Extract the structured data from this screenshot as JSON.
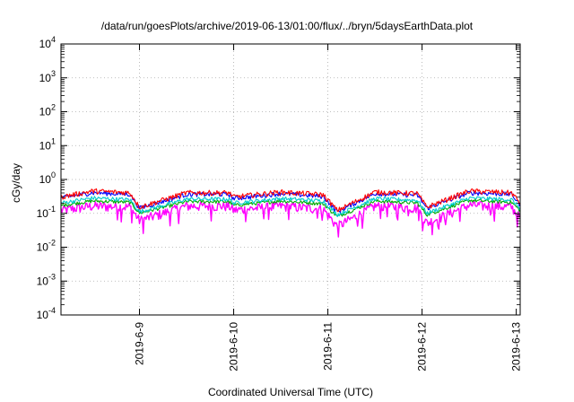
{
  "chart_data": {
    "type": "line",
    "title": "/data/run/goesPlots/archive/2019-06-13/01:00/flux/../bryn/5daysEarthData.plot",
    "xlabel": "Coordinated Universal Time (UTC)",
    "ylabel": "cGy/day",
    "yscale": "log",
    "ylim": [
      0.0001,
      10000
    ],
    "xlim": [
      "2019-06-08T04:00",
      "2019-06-13T01:00"
    ],
    "grid": true,
    "legend": "none",
    "x_ticks": [
      "2019-6-9",
      "2019-6-10",
      "2019-6-11",
      "2019-6-12",
      "2019-6-13"
    ],
    "y_ticks": [
      {
        "base": "10",
        "exp": "-4"
      },
      {
        "base": "10",
        "exp": "-3"
      },
      {
        "base": "10",
        "exp": "-2"
      },
      {
        "base": "10",
        "exp": "-1"
      },
      {
        "base": "10",
        "exp": "0"
      },
      {
        "base": "10",
        "exp": "1"
      },
      {
        "base": "10",
        "exp": "2"
      },
      {
        "base": "10",
        "exp": "3"
      },
      {
        "base": "10",
        "exp": "4"
      }
    ],
    "series": [
      {
        "color": "#ff0000",
        "days_x": [
          8.17,
          8.5,
          8.9,
          9.0,
          9.5,
          9.95,
          10.0,
          10.5,
          10.95,
          11.1,
          11.5,
          11.95,
          12.05,
          12.5,
          12.95,
          13.04
        ],
        "values": [
          0.3,
          0.45,
          0.4,
          0.15,
          0.4,
          0.4,
          0.3,
          0.42,
          0.35,
          0.12,
          0.42,
          0.38,
          0.15,
          0.45,
          0.4,
          0.2
        ]
      },
      {
        "color": "#0000ff",
        "days_x": [
          8.17,
          8.5,
          8.9,
          9.0,
          9.5,
          9.95,
          10.0,
          10.5,
          10.95,
          11.1,
          11.5,
          11.95,
          12.05,
          12.5,
          12.95,
          13.04
        ],
        "values": [
          0.28,
          0.4,
          0.36,
          0.14,
          0.36,
          0.36,
          0.27,
          0.38,
          0.31,
          0.11,
          0.38,
          0.34,
          0.14,
          0.4,
          0.36,
          0.18
        ]
      },
      {
        "color": "#00cccc",
        "days_x": [
          8.17,
          8.5,
          8.9,
          9.0,
          9.5,
          9.95,
          10.0,
          10.5,
          10.95,
          11.1,
          11.5,
          11.95,
          12.05,
          12.5,
          12.95,
          13.04
        ],
        "values": [
          0.2,
          0.28,
          0.25,
          0.11,
          0.26,
          0.26,
          0.2,
          0.27,
          0.23,
          0.09,
          0.27,
          0.24,
          0.1,
          0.28,
          0.25,
          0.14
        ]
      },
      {
        "color": "#00aa00",
        "days_x": [
          8.17,
          8.5,
          8.9,
          9.0,
          9.5,
          9.95,
          10.0,
          10.5,
          10.95,
          11.1,
          11.5,
          11.95,
          12.05,
          12.5,
          12.95,
          13.04
        ],
        "values": [
          0.17,
          0.23,
          0.21,
          0.1,
          0.22,
          0.22,
          0.17,
          0.23,
          0.19,
          0.08,
          0.23,
          0.2,
          0.09,
          0.24,
          0.21,
          0.12
        ]
      },
      {
        "color": "#ff00ff",
        "days_x": [
          8.17,
          8.5,
          8.9,
          9.0,
          9.5,
          9.95,
          10.0,
          10.5,
          10.95,
          11.1,
          11.5,
          11.95,
          12.05,
          12.5,
          12.95,
          13.04
        ],
        "values": [
          0.12,
          0.16,
          0.15,
          0.06,
          0.16,
          0.16,
          0.12,
          0.16,
          0.13,
          0.04,
          0.16,
          0.14,
          0.05,
          0.17,
          0.15,
          0.07
        ]
      }
    ]
  }
}
